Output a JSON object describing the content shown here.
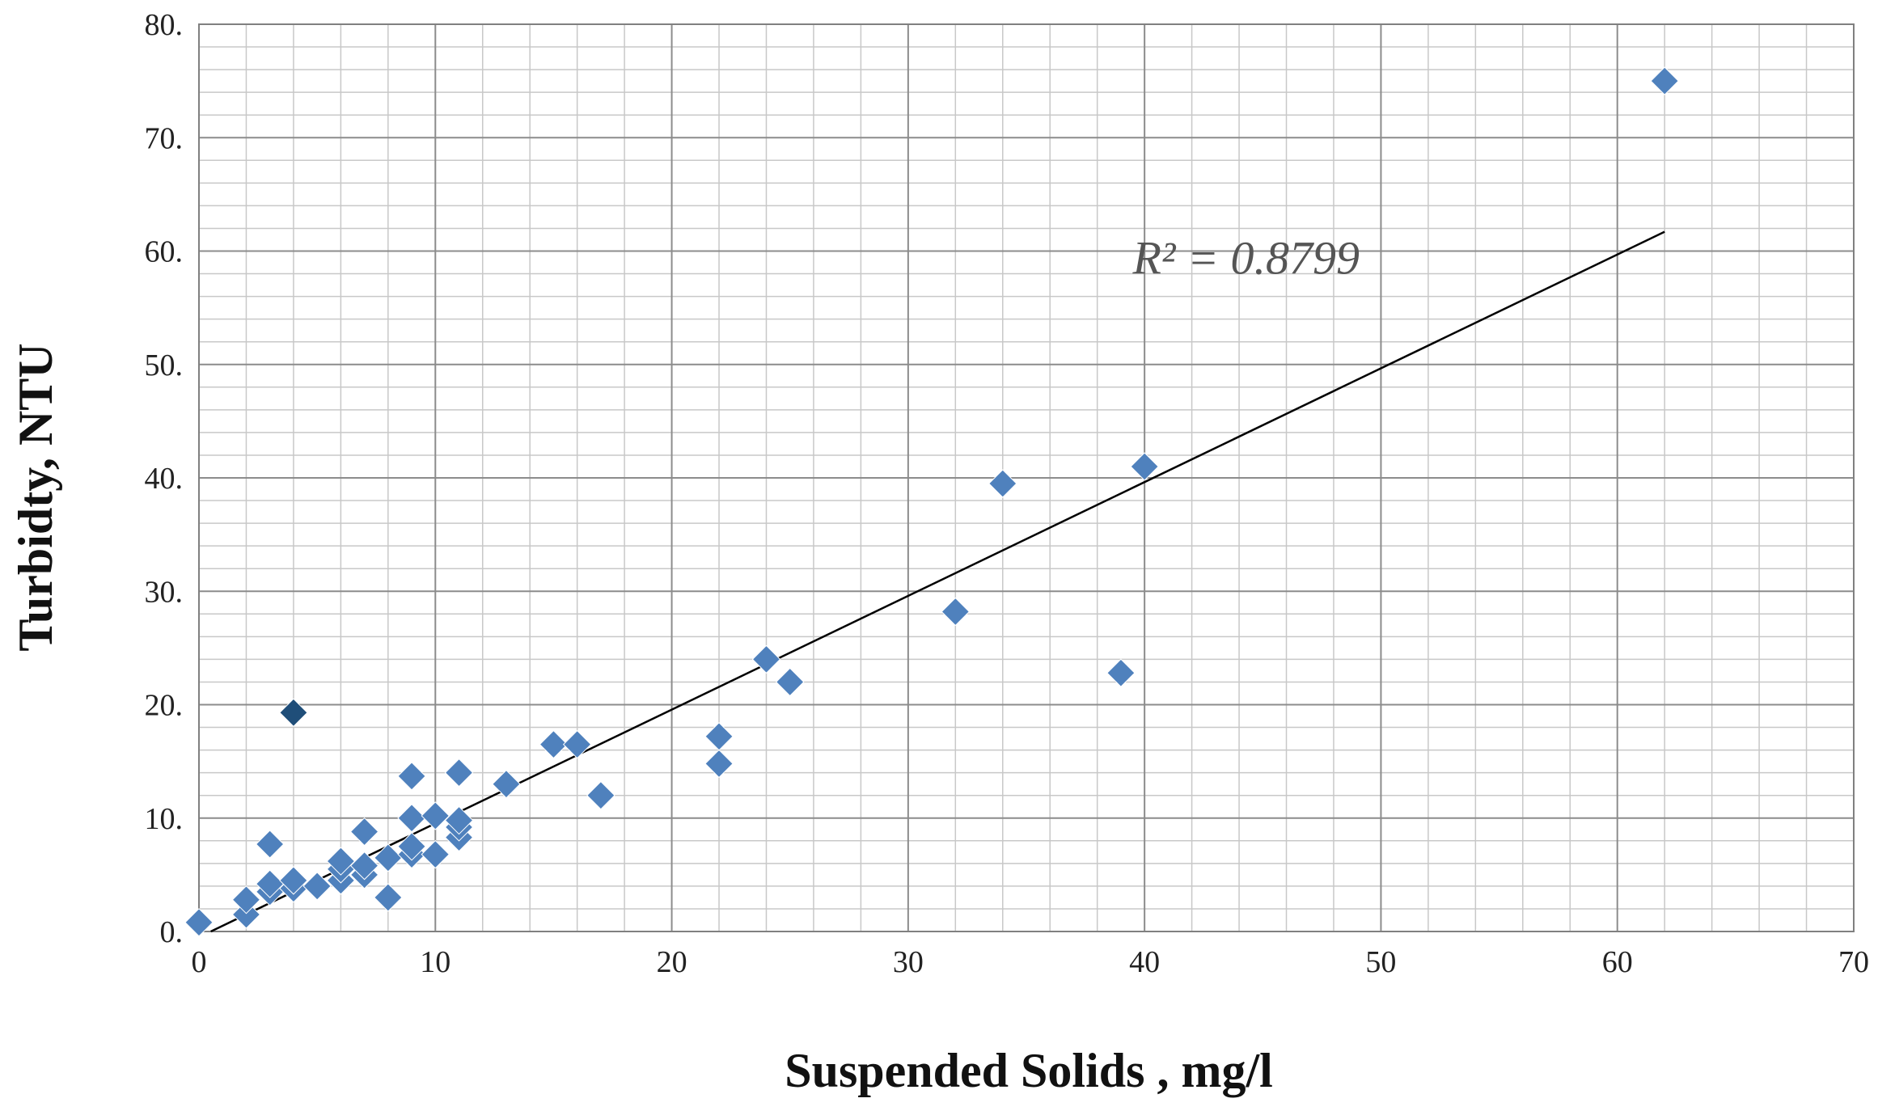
{
  "chart_data": {
    "type": "scatter",
    "title": "",
    "xlabel": "Suspended Solids , mg/l",
    "ylabel": "Turbidty, NTU",
    "xlim": [
      0,
      70
    ],
    "ylim": [
      0,
      80
    ],
    "x_ticks": [
      "0",
      "10",
      "20",
      "30",
      "40",
      "50",
      "60",
      "70"
    ],
    "y_ticks": [
      "0.",
      "10.",
      "20.",
      "30.",
      "40.",
      "50.",
      "60.",
      "70.",
      "80."
    ],
    "grid": true,
    "legend": "none",
    "marker": "diamond",
    "marker_color": "#4F81BD",
    "highlight_color": "#1F4E79",
    "series": [
      {
        "points": [
          [
            0,
            0.8
          ],
          [
            2,
            1.5
          ],
          [
            2,
            2.8
          ],
          [
            3,
            3.5
          ],
          [
            3,
            4.2
          ],
          [
            3,
            7.7
          ],
          [
            4,
            3.8
          ],
          [
            4,
            4.5
          ],
          [
            4,
            19.3
          ],
          [
            5,
            4.0
          ],
          [
            6,
            4.5
          ],
          [
            6,
            5.5
          ],
          [
            6,
            6.2
          ],
          [
            7,
            5.0
          ],
          [
            7,
            5.8
          ],
          [
            7,
            8.8
          ],
          [
            8,
            3.0
          ],
          [
            8,
            6.5
          ],
          [
            9,
            6.8
          ],
          [
            9,
            7.5
          ],
          [
            9,
            10.0
          ],
          [
            9,
            13.7
          ],
          [
            10,
            6.8
          ],
          [
            10,
            10.2
          ],
          [
            11,
            8.3
          ],
          [
            11,
            9.2
          ],
          [
            11,
            9.8
          ],
          [
            11,
            14.0
          ],
          [
            13,
            13.0
          ],
          [
            15,
            16.5
          ],
          [
            16,
            16.5
          ],
          [
            17,
            12.0
          ],
          [
            22,
            14.8
          ],
          [
            22,
            17.2
          ],
          [
            24,
            24.0
          ],
          [
            25,
            22.0
          ],
          [
            32,
            28.2
          ],
          [
            34,
            39.5
          ],
          [
            39,
            22.8
          ],
          [
            40,
            41.0
          ],
          [
            62,
            75.0
          ]
        ]
      }
    ],
    "highlight_point": [
      4,
      19.3
    ],
    "trendline": {
      "type": "linear",
      "from": [
        0.5,
        0
      ],
      "to": [
        62,
        61.7
      ],
      "label": "R² = 0.8799",
      "label_at": [
        39.5,
        58.0
      ],
      "color": "#000000"
    }
  }
}
